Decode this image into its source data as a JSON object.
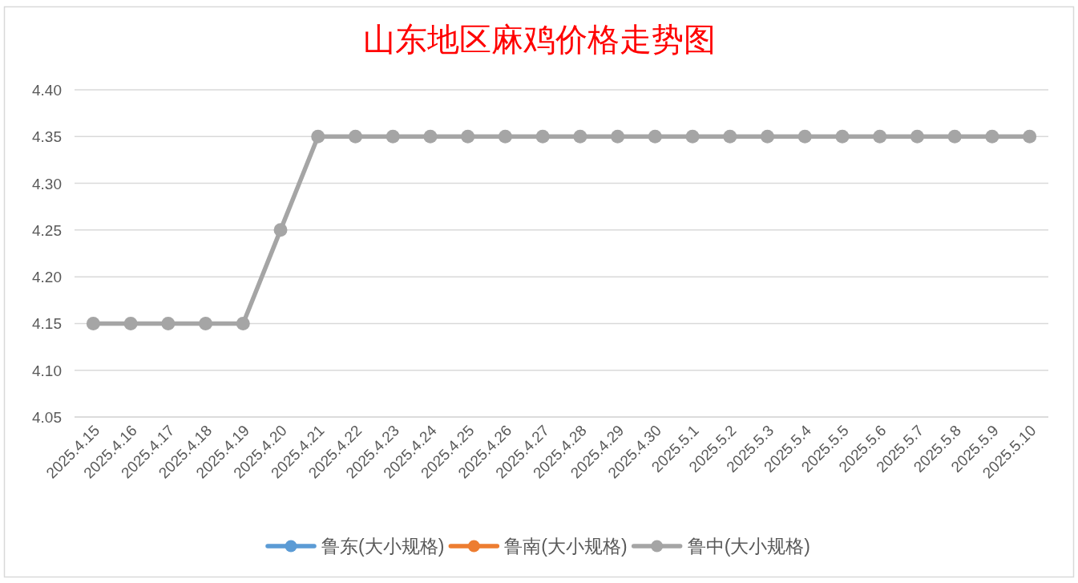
{
  "chart_data": {
    "type": "line",
    "title": "山东地区麻鸡价格走势图",
    "categories": [
      "2025.4.15",
      "2025.4.16",
      "2025.4.17",
      "2025.4.18",
      "2025.4.19",
      "2025.4.20",
      "2025.4.21",
      "2025.4.22",
      "2025.4.23",
      "2025.4.24",
      "2025.4.25",
      "2025.4.26",
      "2025.4.27",
      "2025.4.28",
      "2025.4.29",
      "2025.4.30",
      "2025.5.1",
      "2025.5.2",
      "2025.5.3",
      "2025.5.4",
      "2025.5.5",
      "2025.5.6",
      "2025.5.7",
      "2025.5.8",
      "2025.5.9",
      "2025.5.10"
    ],
    "series": [
      {
        "name": "鲁东(大小规格)",
        "color": "#5b9bd5",
        "values": [
          null,
          null,
          null,
          null,
          null,
          null,
          null,
          null,
          null,
          null,
          null,
          null,
          null,
          null,
          null,
          null,
          null,
          null,
          null,
          null,
          null,
          null,
          null,
          null,
          null,
          null
        ]
      },
      {
        "name": "鲁南(大小规格)",
        "color": "#ed7d31",
        "values": [
          null,
          null,
          null,
          null,
          null,
          null,
          null,
          null,
          null,
          null,
          null,
          null,
          null,
          null,
          null,
          null,
          null,
          null,
          null,
          null,
          null,
          null,
          null,
          null,
          null,
          null
        ]
      },
      {
        "name": "鲁中(大小规格)",
        "color": "#a5a5a5",
        "values": [
          4.15,
          4.15,
          4.15,
          4.15,
          4.15,
          4.25,
          4.35,
          4.35,
          4.35,
          4.35,
          4.35,
          4.35,
          4.35,
          4.35,
          4.35,
          4.35,
          4.35,
          4.35,
          4.35,
          4.35,
          4.35,
          4.35,
          4.35,
          4.35,
          4.35,
          4.35
        ]
      }
    ],
    "ylim": [
      4.05,
      4.4
    ],
    "yticks": [
      4.05,
      {
        "value": 4.1,
        "label": "4.10"
      },
      4.15,
      {
        "value": 4.2,
        "label": "4.20"
      },
      4.25,
      {
        "value": 4.3,
        "label": "4.30"
      },
      4.35,
      {
        "value": 4.4,
        "label": "4.40"
      }
    ],
    "grid": "y",
    "legend": "bottom",
    "marker": "circle"
  }
}
